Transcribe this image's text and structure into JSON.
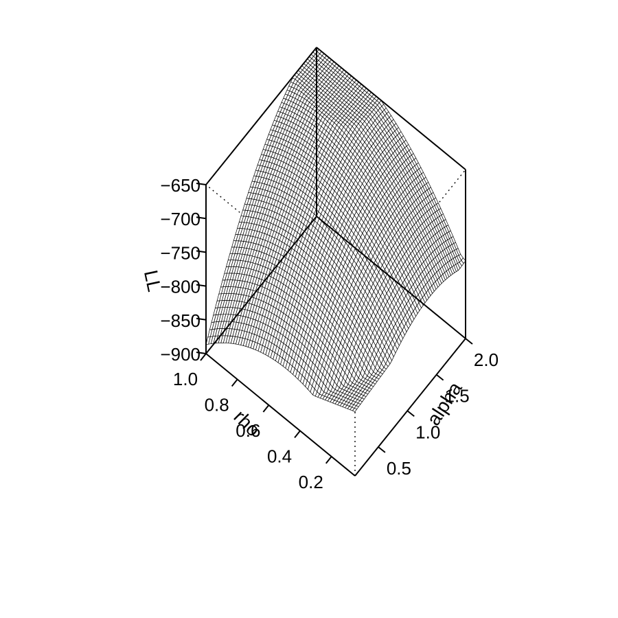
{
  "chart_data": {
    "type": "surface3d",
    "x_axis": {
      "label": "rho",
      "range": [
        0.05,
        1.0
      ],
      "ticks": [
        0.2,
        0.4,
        0.6,
        0.8,
        1.0
      ],
      "tick_labels": [
        "0.2",
        "0.4",
        "0.6",
        "0.8",
        "1.0"
      ]
    },
    "y_axis": {
      "label": "alpha",
      "range": [
        0.1,
        2.0
      ],
      "ticks": [
        0.5,
        1.0,
        1.5,
        2.0
      ],
      "tick_labels": [
        "0.5",
        "1.0",
        "1.5",
        "2.0"
      ]
    },
    "z_axis": {
      "label": "LL",
      "range": [
        -900,
        -650
      ],
      "ticks": [
        -900,
        -850,
        -800,
        -750,
        -700,
        -650
      ],
      "tick_labels": [
        "−900",
        "−850",
        "−800",
        "−750",
        "−700",
        "−650"
      ]
    },
    "surface": {
      "description_function": "LL(rho, alpha) concave cap",
      "rho_peak": 0.7,
      "alpha_peak": 1.3,
      "z_max": -662,
      "z_at_corners": {
        "rho_min_alpha_min": -805,
        "rho_max_alpha_min": -900,
        "rho_min_alpha_max": -785,
        "rho_max_alpha_max": -700
      },
      "grid_n": 60
    },
    "mesh_color": "#000000",
    "surface_fill": "#ffffff",
    "grid": false
  }
}
